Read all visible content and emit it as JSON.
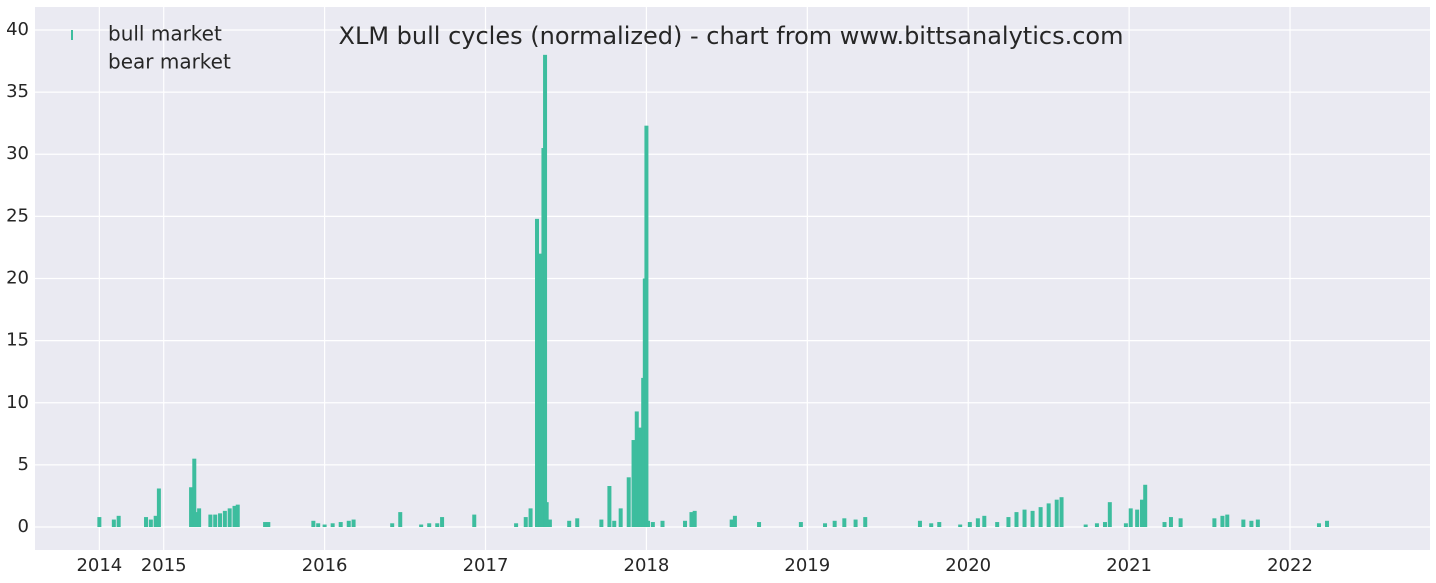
{
  "chart_data": {
    "type": "bar",
    "title": "XLM bull cycles (normalized)  - chart from www.bittsanalytics.com",
    "x": [
      2014.6,
      2014.69,
      2014.72,
      2014.89,
      2014.92,
      2014.95,
      2014.97,
      2015.17,
      2015.19,
      2015.2,
      2015.22,
      2015.29,
      2015.32,
      2015.35,
      2015.38,
      2015.41,
      2015.44,
      2015.46,
      2015.63,
      2015.65,
      2015.93,
      2015.96,
      2016.0,
      2016.05,
      2016.1,
      2016.15,
      2016.18,
      2016.42,
      2016.47,
      2016.6,
      2016.65,
      2016.7,
      2016.73,
      2016.93,
      2017.19,
      2017.25,
      2017.28,
      2017.32,
      2017.33,
      2017.34,
      2017.36,
      2017.37,
      2017.38,
      2017.4,
      2017.52,
      2017.57,
      2017.72,
      2017.77,
      2017.8,
      2017.84,
      2017.89,
      2017.92,
      2017.94,
      2017.96,
      2017.98,
      2017.99,
      2018.0,
      2018.01,
      2018.04,
      2018.1,
      2018.24,
      2018.28,
      2018.3,
      2018.53,
      2018.55,
      2018.7,
      2018.96,
      2019.11,
      2019.17,
      2019.23,
      2019.3,
      2019.36,
      2019.7,
      2019.77,
      2019.82,
      2019.95,
      2020.01,
      2020.06,
      2020.1,
      2020.18,
      2020.25,
      2020.3,
      2020.35,
      2020.4,
      2020.45,
      2020.5,
      2020.55,
      2020.58,
      2020.73,
      2020.8,
      2020.85,
      2020.88,
      2020.98,
      2021.01,
      2021.05,
      2021.08,
      2021.1,
      2021.22,
      2021.26,
      2021.32,
      2021.53,
      2021.58,
      2021.61,
      2021.71,
      2021.76,
      2021.8,
      2022.18,
      2022.23
    ],
    "series": [
      {
        "name": "bull market",
        "color": "#3dbd9e",
        "values": [
          0.8,
          0.6,
          0.9,
          0.8,
          0.6,
          0.9,
          3.1,
          3.2,
          5.5,
          1.2,
          1.5,
          1.0,
          1.0,
          1.1,
          1.3,
          1.5,
          1.7,
          1.8,
          0.4,
          0.4,
          0.5,
          0.3,
          0.2,
          0.3,
          0.4,
          0.5,
          0.6,
          0.3,
          1.2,
          0.2,
          0.3,
          0.3,
          0.8,
          1.0,
          0.3,
          0.8,
          1.5,
          24.8,
          2.5,
          22,
          30.5,
          38,
          2,
          0.6,
          0.5,
          0.7,
          0.6,
          3.3,
          0.5,
          1.5,
          4,
          7,
          9.3,
          8,
          12,
          20,
          32.3,
          0.5,
          0.4,
          0.5,
          0.5,
          1.2,
          1.3,
          0.6,
          0.9,
          0.4,
          0.4,
          0.3,
          0.5,
          0.7,
          0.6,
          0.8,
          0.5,
          0.3,
          0.4,
          0.2,
          0.4,
          0.7,
          0.9,
          0.4,
          0.8,
          1.2,
          1.4,
          1.3,
          1.6,
          1.9,
          2.2,
          2.4,
          0.2,
          0.3,
          0.4,
          2.0,
          0.3,
          1.5,
          1.4,
          2.2,
          3.4,
          0.4,
          0.8,
          0.7,
          0.7,
          0.9,
          1.0,
          0.6,
          0.5,
          0.6,
          0.3,
          0.5
        ]
      }
    ],
    "legend_entries": [
      {
        "name": "bull market",
        "color": "#3dbd9e"
      },
      {
        "name": "bear market",
        "color": "#eaeaf2"
      }
    ],
    "legend_position": "upper left",
    "xlim": [
      2014.2,
      2022.87
    ],
    "xticks": [
      {
        "value": 2014.6,
        "label": "2014"
      },
      2015,
      2016,
      2017,
      2018,
      2019,
      2020,
      2021,
      2022
    ],
    "ylim": [
      -1.85,
      41.85
    ],
    "yticks": [
      0,
      5,
      10,
      15,
      20,
      25,
      30,
      35,
      40
    ],
    "grid": true,
    "background": "#eaeaf2"
  }
}
